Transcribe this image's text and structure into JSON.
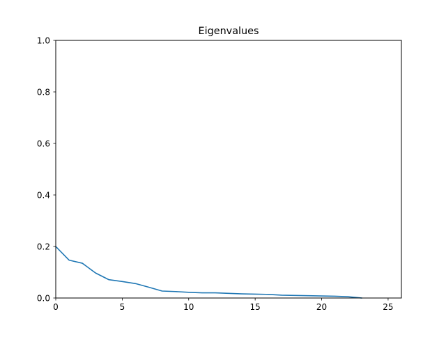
{
  "chart_data": {
    "type": "line",
    "title": "Eigenvalues",
    "xlabel": "",
    "ylabel": "",
    "xlim": [
      0,
      26
    ],
    "ylim": [
      0,
      1.0
    ],
    "x_ticks": [
      0,
      5,
      10,
      15,
      20,
      25
    ],
    "x_tick_labels": [
      "0",
      "5",
      "10",
      "15",
      "20",
      "25"
    ],
    "y_ticks": [
      0.0,
      0.2,
      0.4,
      0.6,
      0.8,
      1.0
    ],
    "y_tick_labels": [
      "0.0",
      "0.2",
      "0.4",
      "0.6",
      "0.8",
      "1.0"
    ],
    "grid": false,
    "legend": "none",
    "series": [
      {
        "color": "#1f77b4",
        "x": [
          0,
          1,
          2,
          3,
          4,
          5,
          6,
          7,
          8,
          9,
          10,
          11,
          12,
          13,
          14,
          15,
          16,
          17,
          18,
          19,
          20,
          21,
          22,
          23
        ],
        "y": [
          0.2,
          0.147,
          0.135,
          0.097,
          0.071,
          0.064,
          0.056,
          0.042,
          0.027,
          0.025,
          0.022,
          0.02,
          0.02,
          0.018,
          0.016,
          0.015,
          0.014,
          0.011,
          0.01,
          0.009,
          0.008,
          0.007,
          0.005,
          0.0
        ]
      }
    ]
  }
}
